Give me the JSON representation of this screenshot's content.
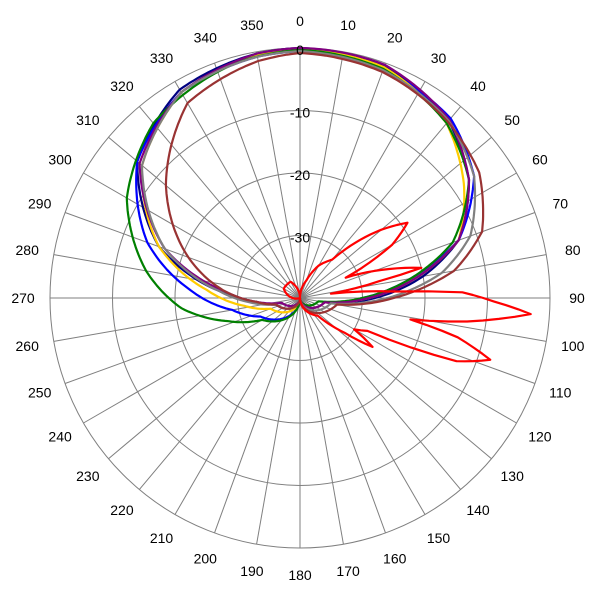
{
  "chart_data": {
    "type": "polar-line",
    "title": "",
    "angle_unit": "degrees",
    "angle_zero": "top",
    "angle_direction": "clockwise",
    "radial_range": [
      -40,
      0
    ],
    "radial_ticks": [
      -30,
      -20,
      -10,
      0
    ],
    "radial_tick_labels": [
      "-30",
      "-20",
      "-10",
      "0"
    ],
    "angle_ticks": [
      0,
      10,
      20,
      30,
      40,
      50,
      60,
      70,
      80,
      90,
      100,
      110,
      120,
      130,
      140,
      150,
      160,
      170,
      180,
      190,
      200,
      210,
      220,
      230,
      240,
      250,
      260,
      270,
      280,
      290,
      300,
      310,
      320,
      330,
      340,
      350
    ],
    "angle_tick_labels": [
      "0",
      "10",
      "20",
      "30",
      "40",
      "50",
      "60",
      "70",
      "80",
      "90",
      "100",
      "110",
      "120",
      "130",
      "140",
      "150",
      "160",
      "170",
      "180",
      "190",
      "200",
      "210",
      "220",
      "230",
      "240",
      "250",
      "260",
      "270",
      "280",
      "290",
      "300",
      "310",
      "320",
      "330",
      "340",
      "350"
    ],
    "grid": true,
    "legend": "none",
    "series": [
      {
        "color": "#000080",
        "points": [
          [
            0,
            0
          ],
          [
            20,
            -0.5
          ],
          [
            40,
            -3
          ],
          [
            55,
            -7
          ],
          [
            70,
            -13
          ],
          [
            80,
            -20
          ],
          [
            90,
            -28
          ],
          [
            100,
            -36
          ],
          [
            180,
            -40
          ],
          [
            255,
            -36
          ],
          [
            265,
            -33
          ],
          [
            275,
            -27
          ],
          [
            290,
            -16
          ],
          [
            310,
            -6
          ],
          [
            330,
            -1.5
          ],
          [
            350,
            -0.3
          ],
          [
            360,
            0
          ]
        ]
      },
      {
        "color": "#0000ff",
        "points": [
          [
            0,
            -0.5
          ],
          [
            20,
            -1
          ],
          [
            40,
            -2.5
          ],
          [
            55,
            -6
          ],
          [
            70,
            -13
          ],
          [
            80,
            -22
          ],
          [
            90,
            -30
          ],
          [
            100,
            -36
          ],
          [
            180,
            -40
          ],
          [
            245,
            -33
          ],
          [
            260,
            -29
          ],
          [
            275,
            -22
          ],
          [
            290,
            -14
          ],
          [
            310,
            -6
          ],
          [
            330,
            -2
          ],
          [
            350,
            -0.8
          ],
          [
            360,
            -0.5
          ]
        ]
      },
      {
        "color": "#ffcc00",
        "points": [
          [
            0,
            -0.2
          ],
          [
            20,
            -0.7
          ],
          [
            40,
            -3.5
          ],
          [
            55,
            -8
          ],
          [
            70,
            -13
          ],
          [
            80,
            -21
          ],
          [
            90,
            -29
          ],
          [
            100,
            -36
          ],
          [
            180,
            -40
          ],
          [
            250,
            -35
          ],
          [
            262,
            -31
          ],
          [
            275,
            -25
          ],
          [
            290,
            -16
          ],
          [
            310,
            -7
          ],
          [
            330,
            -2
          ],
          [
            350,
            -0.5
          ],
          [
            360,
            -0.2
          ]
        ]
      },
      {
        "color": "#008000",
        "points": [
          [
            0,
            -0.3
          ],
          [
            20,
            -1
          ],
          [
            40,
            -3.5
          ],
          [
            55,
            -7
          ],
          [
            70,
            -14
          ],
          [
            80,
            -22
          ],
          [
            90,
            -30
          ],
          [
            100,
            -37
          ],
          [
            180,
            -40
          ],
          [
            240,
            -33
          ],
          [
            252,
            -28
          ],
          [
            265,
            -21
          ],
          [
            280,
            -15
          ],
          [
            300,
            -8
          ],
          [
            320,
            -3.5
          ],
          [
            345,
            -1
          ],
          [
            360,
            -0.3
          ]
        ]
      },
      {
        "color": "#800080",
        "points": [
          [
            0,
            0
          ],
          [
            20,
            -0.3
          ],
          [
            40,
            -2.8
          ],
          [
            55,
            -7
          ],
          [
            70,
            -13
          ],
          [
            80,
            -21
          ],
          [
            90,
            -29
          ],
          [
            100,
            -36
          ],
          [
            180,
            -40
          ],
          [
            255,
            -37
          ],
          [
            265,
            -33
          ],
          [
            275,
            -28
          ],
          [
            290,
            -17
          ],
          [
            310,
            -6.5
          ],
          [
            330,
            -2
          ],
          [
            350,
            -0.3
          ],
          [
            360,
            0
          ]
        ]
      },
      {
        "color": "#808080",
        "points": [
          [
            0,
            -0.5
          ],
          [
            20,
            -1.2
          ],
          [
            40,
            -3
          ],
          [
            55,
            -6
          ],
          [
            70,
            -11
          ],
          [
            80,
            -17
          ],
          [
            90,
            -26
          ],
          [
            100,
            -35
          ],
          [
            180,
            -40
          ],
          [
            255,
            -36
          ],
          [
            265,
            -32
          ],
          [
            275,
            -27
          ],
          [
            290,
            -17
          ],
          [
            310,
            -7
          ],
          [
            330,
            -2
          ],
          [
            350,
            -0.8
          ],
          [
            360,
            -0.5
          ]
        ]
      },
      {
        "color": "#993333",
        "points": [
          [
            0,
            -0.8
          ],
          [
            20,
            -1.5
          ],
          [
            40,
            -3.2
          ],
          [
            55,
            -5
          ],
          [
            70,
            -9
          ],
          [
            80,
            -15
          ],
          [
            90,
            -25
          ],
          [
            100,
            -34
          ],
          [
            180,
            -40
          ],
          [
            255,
            -36
          ],
          [
            265,
            -33
          ],
          [
            275,
            -28
          ],
          [
            290,
            -21
          ],
          [
            310,
            -12
          ],
          [
            330,
            -4
          ],
          [
            350,
            -1.5
          ],
          [
            360,
            -0.8
          ]
        ]
      },
      {
        "color": "#ff0000",
        "points": [
          [
            0,
            -40
          ],
          [
            20,
            -37
          ],
          [
            30,
            -34
          ],
          [
            40,
            -32
          ],
          [
            50,
            -23
          ],
          [
            55,
            -19
          ],
          [
            60,
            -23
          ],
          [
            66,
            -32
          ],
          [
            72,
            -25
          ],
          [
            76,
            -20
          ],
          [
            78,
            -27
          ],
          [
            82,
            -35
          ],
          [
            86,
            -25
          ],
          [
            88,
            -14
          ],
          [
            91,
            -9
          ],
          [
            94,
            -3
          ],
          [
            98,
            -13
          ],
          [
            101,
            -22
          ],
          [
            104,
            -14
          ],
          [
            108,
            -8
          ],
          [
            112,
            -13
          ],
          [
            116,
            -28
          ],
          [
            120,
            -30
          ],
          [
            124,
            -26
          ],
          [
            128,
            -31
          ],
          [
            135,
            -36
          ],
          [
            180,
            -40
          ],
          [
            250,
            -40
          ],
          [
            300,
            -37
          ],
          [
            330,
            -37
          ],
          [
            360,
            -40
          ]
        ]
      }
    ]
  }
}
